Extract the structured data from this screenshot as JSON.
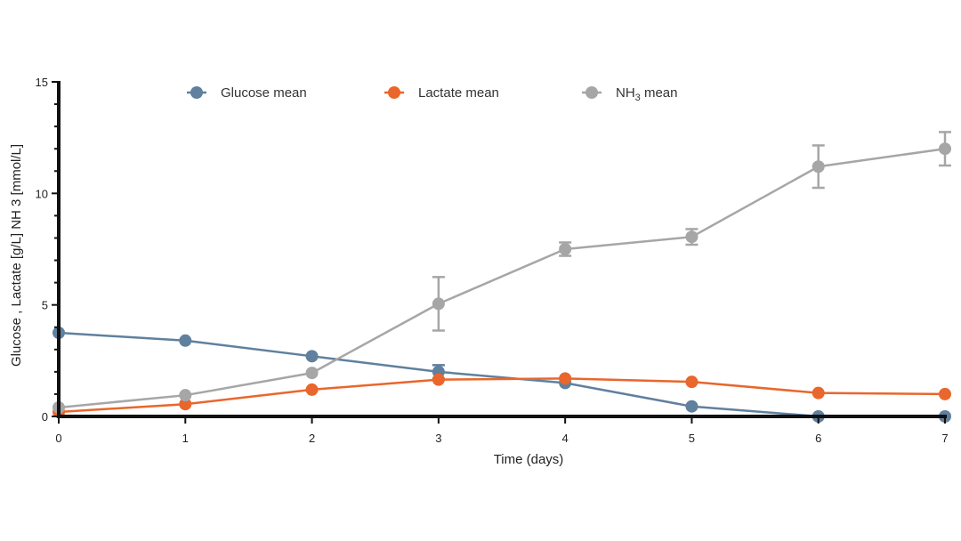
{
  "chart_data": {
    "type": "line",
    "xlabel": "Time (days)",
    "ylabel": "Glucose , Lactate [g/L] NH 3 [mmol/L]",
    "xlim": [
      0,
      7
    ],
    "ylim": [
      0,
      15
    ],
    "x_ticks": [
      0,
      1,
      2,
      3,
      4,
      5,
      6,
      7
    ],
    "y_ticks": [
      0,
      5,
      10,
      15
    ],
    "grid": false,
    "legend_position": "top",
    "x": [
      0,
      1,
      2,
      3,
      4,
      5,
      6,
      7
    ],
    "series": [
      {
        "name": "Glucose mean",
        "color": "#60809e",
        "values": [
          3.75,
          3.4,
          2.7,
          2.0,
          1.5,
          0.45,
          0.0,
          0.0
        ],
        "errors": [
          0,
          0,
          0,
          0.3,
          0,
          0,
          0,
          0
        ]
      },
      {
        "name": "Lactate mean",
        "color": "#e9662c",
        "values": [
          0.2,
          0.55,
          1.2,
          1.65,
          1.7,
          1.55,
          1.05,
          1.0
        ],
        "errors": [
          0,
          0,
          0,
          0,
          0,
          0,
          0,
          0
        ]
      },
      {
        "name": "NH3 mean",
        "name_parts": [
          "NH",
          "3",
          " mean"
        ],
        "color": "#a6a6a6",
        "values": [
          0.4,
          0.95,
          1.95,
          5.05,
          7.5,
          8.05,
          11.2,
          12.0
        ],
        "errors": [
          0,
          0,
          0,
          1.2,
          0.3,
          0.35,
          0.95,
          0.75
        ]
      }
    ]
  }
}
